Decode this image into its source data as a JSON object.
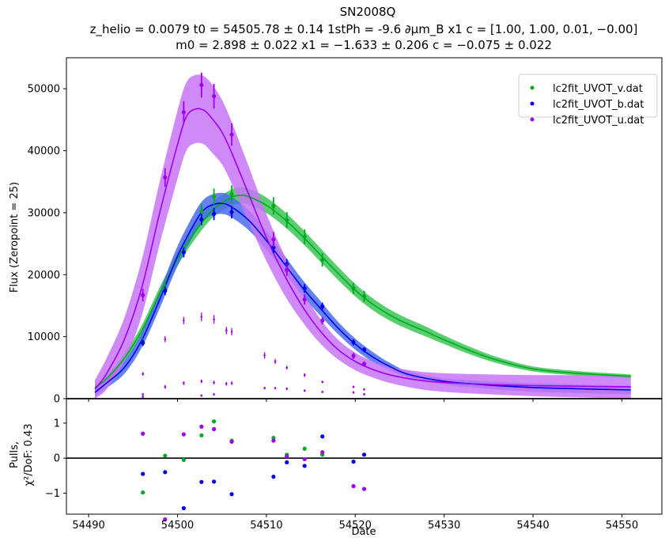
{
  "chart_data": {
    "type": "line",
    "title": "SN2008Q",
    "subtitle_line1": "z_helio = 0.0079 t0 = 54505.78 ± 0.14 1stPh = -9.6 ∂μm_B x1 c = [1.00,  1.00,  0.01,  −0.00]",
    "subtitle_line2": "m0 = 2.898 ± 0.022 x1 = −1.633 ± 0.206 c = −0.075 ± 0.022",
    "main_panel": {
      "ylabel": "Flux (Zeropoint = 25)",
      "xlim": [
        54487.5,
        54554.5
      ],
      "ylim": [
        0,
        55000
      ],
      "yticks": [
        0,
        10000,
        20000,
        30000,
        40000,
        50000
      ],
      "ytick_labels": [
        "0",
        "10000",
        "20000",
        "30000",
        "40000",
        "50000"
      ],
      "legend_position": "top-right",
      "series": [
        {
          "name": "lc2fit_UVOT_v.dat",
          "color": "#00aa22",
          "band_color": "#3cc655",
          "points_x": [
            54496.1,
            54498.6,
            54500.7,
            54502.7,
            54504.1,
            54506.1,
            54510.8,
            54512.3,
            54514.3,
            54516.3,
            54519.8,
            54521.0
          ],
          "points_y": [
            9100,
            17600,
            23800,
            30200,
            32600,
            33000,
            31100,
            28800,
            26100,
            22400,
            17800,
            16500
          ],
          "errors": [
            600,
            900,
            1000,
            1200,
            1300,
            1400,
            1400,
            1300,
            1200,
            1100,
            900,
            900
          ],
          "model_x": [
            54490.7,
            54492,
            54494,
            54496,
            54498,
            54500,
            54502,
            54504,
            54506,
            54507,
            54508,
            54510,
            54512,
            54514,
            54516,
            54518,
            54520,
            54522,
            54524,
            54526,
            54528,
            54530,
            54533,
            54536,
            54540,
            54545,
            54551
          ],
          "model_y": [
            1800,
            3200,
            6500,
            11000,
            17000,
            22500,
            27000,
            30500,
            32400,
            32800,
            32600,
            31200,
            29000,
            26300,
            23300,
            20300,
            17500,
            15200,
            13400,
            12000,
            10800,
            9500,
            7700,
            6200,
            4800,
            4100,
            3600
          ],
          "band": [
            400,
            500,
            700,
            900,
            1000,
            1100,
            1200,
            1250,
            1300,
            1300,
            1300,
            1250,
            1200,
            1150,
            1100,
            1050,
            1000,
            950,
            900,
            850,
            800,
            700,
            600,
            500,
            400,
            350,
            300
          ],
          "pulls_x": [
            54496.1,
            54498.6,
            54500.7,
            54502.7,
            54504.1,
            54506.1,
            54510.8,
            54512.3,
            54514.3,
            54516.3
          ],
          "pulls_y": [
            -0.98,
            0.07,
            -0.05,
            0.65,
            1.05,
            0.5,
            0.58,
            0.1,
            0.27,
            0.1
          ]
        },
        {
          "name": "lc2fit_UVOT_b.dat",
          "color": "#0000ee",
          "band_color": "#4a6cee",
          "points_x": [
            54496.1,
            54498.6,
            54500.7,
            54502.7,
            54504.1,
            54506.1,
            54510.8,
            54512.3,
            54514.3,
            54516.3,
            54519.8,
            54521.0
          ],
          "points_y": [
            9000,
            17400,
            23600,
            28900,
            29800,
            30100,
            24400,
            21700,
            17800,
            14900,
            9100,
            7900
          ],
          "errors": [
            500,
            700,
            800,
            900,
            1000,
            1000,
            900,
            800,
            700,
            600,
            500,
            400
          ],
          "model_x": [
            54490.7,
            54492,
            54494,
            54496,
            54498,
            54500,
            54502,
            54503,
            54504,
            54505,
            54506,
            54508,
            54510,
            54512,
            54514,
            54516,
            54518,
            54520,
            54522,
            54524,
            54526,
            54530,
            54535,
            54540,
            54545,
            54551
          ],
          "model_y": [
            1000,
            2500,
            5000,
            9500,
            16000,
            23000,
            28500,
            30500,
            31300,
            31500,
            31000,
            28800,
            25500,
            21800,
            18000,
            14700,
            11500,
            8800,
            6700,
            5100,
            3900,
            2800,
            2200,
            1800,
            1600,
            1400
          ],
          "band": [
            700,
            800,
            1000,
            1200,
            1400,
            1600,
            1700,
            1700,
            1700,
            1700,
            1700,
            1600,
            1500,
            1400,
            1300,
            1200,
            1000,
            900,
            800,
            600,
            500,
            500,
            600,
            700,
            700,
            700
          ],
          "pulls_x": [
            54496.1,
            54498.6,
            54500.7,
            54502.7,
            54504.1,
            54506.1,
            54510.8,
            54512.3,
            54514.3,
            54516.3,
            54519.8,
            54521.0
          ],
          "pulls_y": [
            -0.45,
            -0.4,
            -1.43,
            -0.68,
            -0.67,
            -1.03,
            -0.53,
            -0.12,
            -0.22,
            0.62,
            -0.1,
            0.1
          ]
        },
        {
          "name": "lc2fit_UVOT_u.dat",
          "color": "#a000f0",
          "band_color": "#c776f7",
          "points_x": [
            54496.1,
            54498.6,
            54500.7,
            54502.7,
            54504.1,
            54506.1,
            54510.8,
            54512.3,
            54514.3,
            54516.3,
            54519.8,
            54521.0
          ],
          "points_y": [
            16700,
            35700,
            46200,
            50600,
            48800,
            42600,
            25700,
            20800,
            16000,
            12600,
            6900,
            5600
          ],
          "errors": [
            1000,
            1500,
            1800,
            2000,
            2000,
            1800,
            1200,
            1000,
            800,
            600,
            500,
            400
          ],
          "model_x": [
            54490.7,
            54492,
            54494,
            54496,
            54498,
            54500,
            54501,
            54502,
            54503,
            54504,
            54505,
            54506,
            54508,
            54510,
            54512,
            54514,
            54516,
            54518,
            54520,
            54522,
            54524,
            54527,
            54530,
            54535,
            54540,
            54545,
            54551
          ],
          "model_y": [
            1500,
            4000,
            9500,
            18000,
            30000,
            41000,
            45500,
            46700,
            46500,
            45000,
            43000,
            40000,
            33000,
            26000,
            20000,
            15000,
            11000,
            8000,
            6000,
            4700,
            3800,
            3000,
            2600,
            2300,
            2100,
            2000,
            1900
          ],
          "band": [
            1500,
            2500,
            3500,
            4500,
            5000,
            5500,
            5500,
            5500,
            5500,
            5500,
            5200,
            5000,
            4500,
            3800,
            3200,
            2500,
            2000,
            1600,
            1400,
            1300,
            1300,
            1400,
            1500,
            1600,
            1700,
            1800,
            1900
          ],
          "pulls_x": [
            54496.1,
            54498.6,
            54500.7,
            54502.7,
            54504.1,
            54506.1,
            54510.8,
            54512.3,
            54514.3,
            54516.3,
            54519.8,
            54521.0
          ],
          "pulls_y": [
            0.7,
            -1.75,
            0.68,
            0.9,
            0.83,
            0.47,
            0.5,
            0.05,
            -0.03,
            0.17,
            -0.8,
            -0.88
          ]
        }
      ],
      "minor_points": {
        "color": "#a000f0",
        "x": [
          54496.1,
          54498.6,
          54500.7,
          54502.7,
          54504.1,
          54505.5,
          54506.1,
          54509.8,
          54511.0,
          54512.3,
          54514.3,
          54516.3,
          54519.8,
          54521.0,
          54496.1,
          54498.6,
          54500.7,
          54502.7,
          54504.1,
          54505.5,
          54506.1,
          54509.8,
          54511.0,
          54512.3,
          54514.3,
          54516.3,
          54519.8,
          54521.0,
          54496.1,
          54502.7,
          54504.1
        ],
        "y": [
          4000,
          9600,
          12600,
          13200,
          12800,
          11000,
          10800,
          7000,
          6000,
          5000,
          3800,
          2700,
          1900,
          1500,
          700,
          1900,
          2500,
          2800,
          2600,
          2400,
          2500,
          1700,
          1700,
          1600,
          1300,
          1100,
          1000,
          700,
          300,
          500,
          700
        ],
        "errors": [
          300,
          500,
          600,
          700,
          700,
          600,
          600,
          500,
          400,
          300,
          300,
          200,
          200,
          200,
          200,
          300,
          300,
          300,
          300,
          300,
          300,
          200,
          200,
          200,
          200,
          200,
          200,
          200,
          200,
          200,
          200
        ]
      }
    },
    "pulls_panel": {
      "ylabel_line1": "Pulls,",
      "ylabel_line2": "χ²/DoF: 0.43",
      "xlabel": "Date",
      "ylim": [
        -1.6,
        1.7
      ],
      "yticks": [
        -1,
        0,
        1
      ],
      "ytick_labels": [
        "−1",
        "0",
        "1"
      ],
      "xticks": [
        54490,
        54500,
        54510,
        54520,
        54530,
        54540,
        54550
      ],
      "xtick_labels": [
        "54490",
        "54500",
        "54510",
        "54520",
        "54530",
        "54540",
        "54550"
      ]
    }
  }
}
